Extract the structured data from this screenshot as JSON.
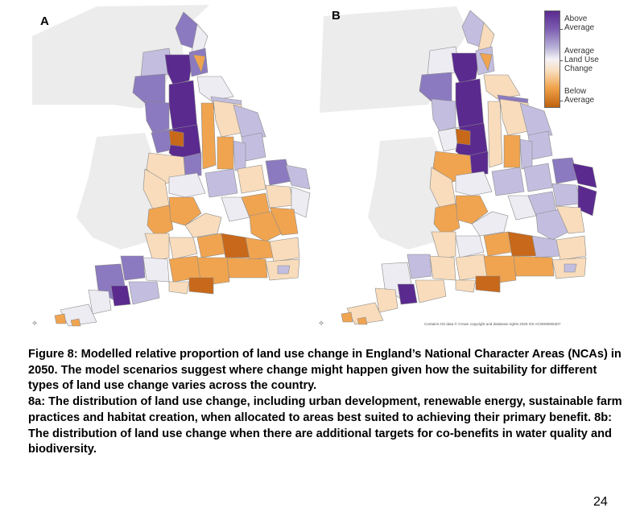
{
  "figure": {
    "panels": [
      {
        "label": "A",
        "scenario": "8a"
      },
      {
        "label": "B",
        "scenario": "8b"
      }
    ],
    "legend": {
      "labels": [
        "Above Average",
        "Average Land Use Change",
        "Below Average"
      ],
      "colors": {
        "above_strong": "#5a2a8f",
        "above": "#8c7ac0",
        "above_light": "#c3bedf",
        "average": "#eeecf3",
        "below_light": "#f8dcbc",
        "below": "#f0a450",
        "below_strong": "#c8681a"
      }
    },
    "attribution": "Contains OS data © Crown copyright and database rights 2025 OS AC0000805307",
    "north_arrow_glyph": "⟡"
  },
  "caption": {
    "title_line": "Figure 8: Modelled relative proportion of land use change in England’s National Character Areas (NCAs) in 2050. The model scenarios suggest where change might happen given how the suitability for different types of land use change varies across the country.",
    "body": "8a: The distribution of land use change, including urban development, renewable energy, sustainable farm practices and habitat creation, when allocated to areas best suited to achieving their primary benefit. 8b: The distribution of land use change when there are additional targets for co-benefits in water quality and biodiversity."
  },
  "page_number": "24"
}
